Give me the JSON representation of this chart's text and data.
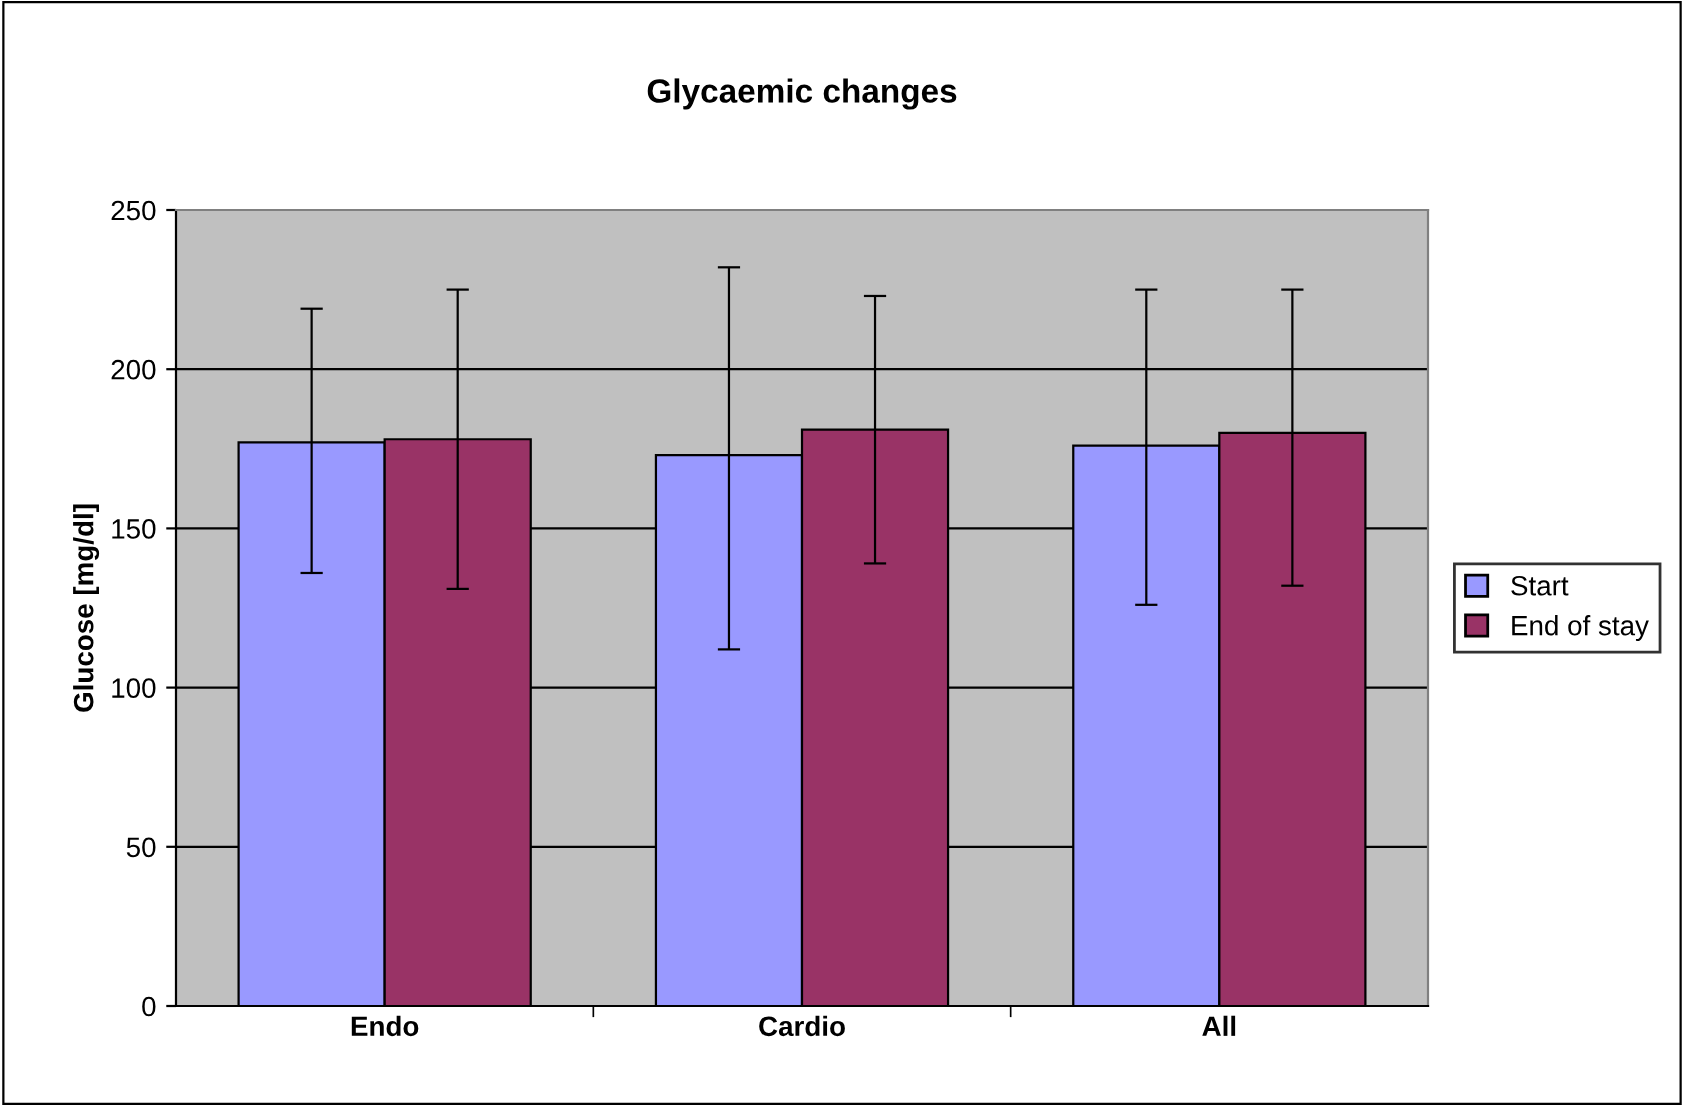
{
  "chart_data": {
    "type": "bar",
    "title": "Glycaemic changes",
    "ylabel": "Glucose [mg/dl]",
    "categories": [
      "Endo",
      "Cardio",
      "All"
    ],
    "series": [
      {
        "name": "Start",
        "color": "#9999ff",
        "values": [
          177,
          173,
          176
        ],
        "errors": [
          [
            136,
            219
          ],
          [
            112,
            232
          ],
          [
            126,
            225
          ]
        ]
      },
      {
        "name": "End of stay",
        "color": "#993366",
        "values": [
          178,
          181,
          180
        ],
        "errors": [
          [
            131,
            225
          ],
          [
            139,
            223
          ],
          [
            132,
            225
          ]
        ]
      }
    ],
    "ylim": [
      0,
      250
    ],
    "yticks": [
      0,
      50,
      100,
      150,
      200,
      250
    ],
    "grid": "y",
    "legend": "right"
  }
}
